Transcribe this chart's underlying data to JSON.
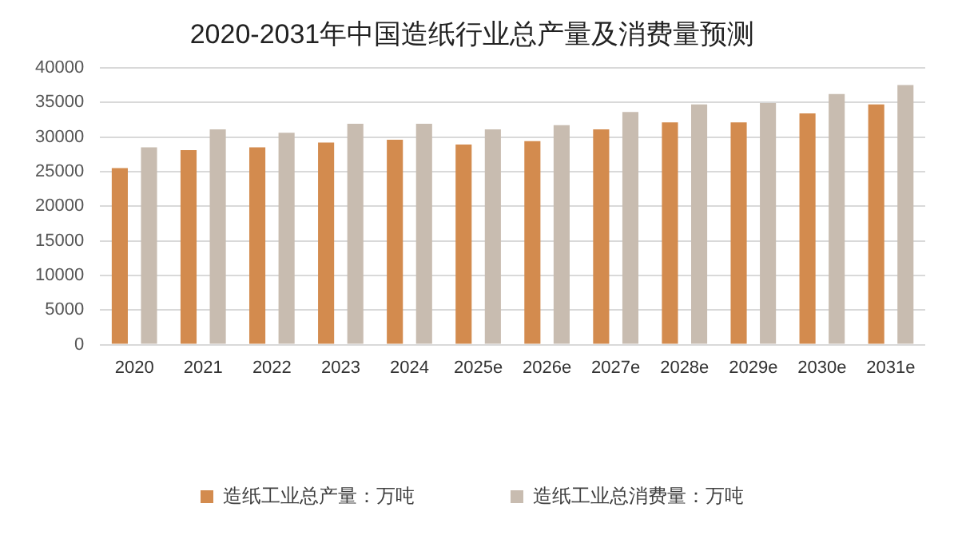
{
  "chart_data": {
    "type": "bar",
    "title": "2020-2031年中国造纸行业总产量及消费量预测",
    "categories": [
      "2020",
      "2021",
      "2022",
      "2023",
      "2024",
      "2025e",
      "2026e",
      "2027e",
      "2028e",
      "2029e",
      "2030e",
      "2031e"
    ],
    "series": [
      {
        "name": "造纸工业总产量：万吨",
        "color": "#d38b4e",
        "values": [
          25500,
          28100,
          28500,
          29200,
          29600,
          28900,
          29400,
          31100,
          32100,
          32100,
          33400,
          34700
        ]
      },
      {
        "name": "造纸工业总消费量：万吨",
        "color": "#c8bcb0",
        "values": [
          28500,
          31100,
          30600,
          31900,
          31900,
          31100,
          31700,
          33600,
          34700,
          34900,
          36200,
          37500
        ]
      }
    ],
    "ylim": [
      0,
      40000
    ],
    "yticks": [
      0,
      5000,
      10000,
      15000,
      20000,
      25000,
      30000,
      35000,
      40000
    ],
    "grid": "y",
    "legend": "bottom"
  }
}
